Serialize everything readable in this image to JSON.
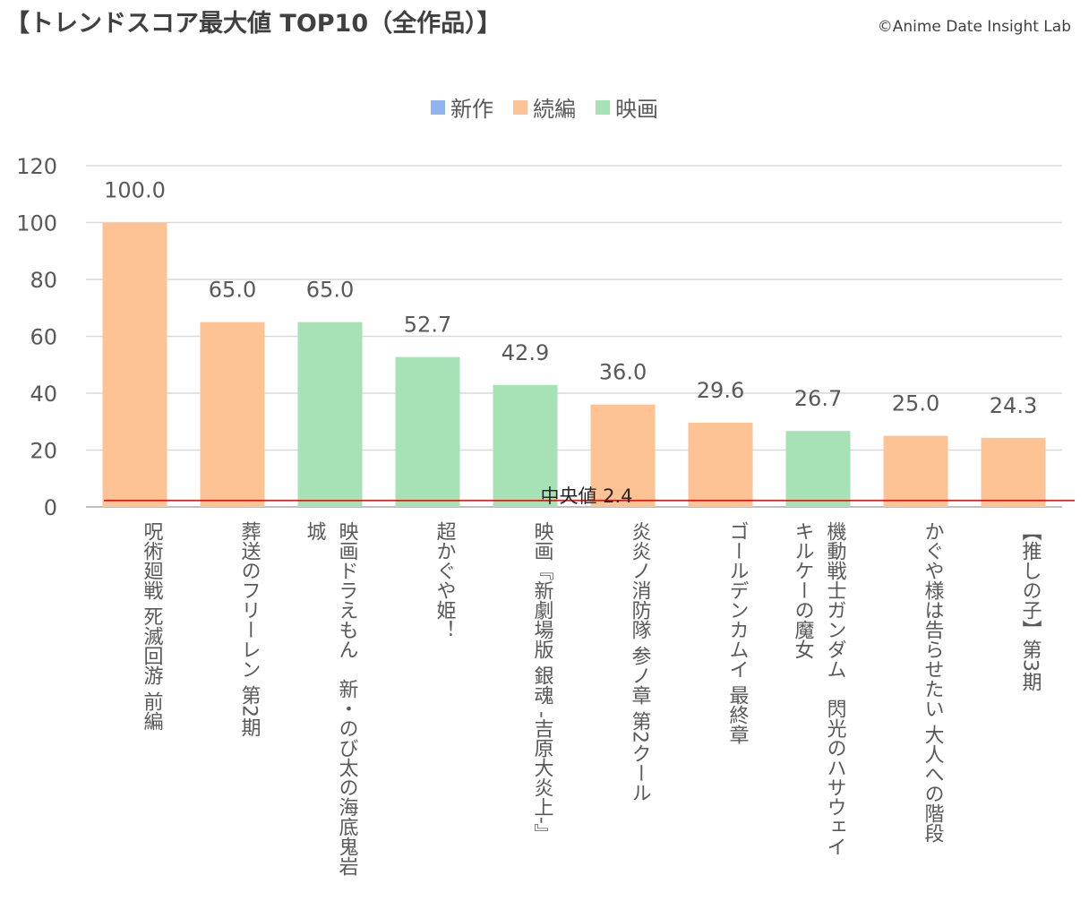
{
  "title": "【トレンドスコア最大値 TOP10（全作品）】",
  "credit": "©Anime Date Insight Lab",
  "legend": [
    {
      "label": "新作",
      "color": "#8fb4f0"
    },
    {
      "label": "続編",
      "color": "#fdc395"
    },
    {
      "label": "映画",
      "color": "#a6e2b5"
    }
  ],
  "chart_data": {
    "type": "bar",
    "title": "【トレンドスコア最大値 TOP10（全作品）】",
    "ylim": [
      0,
      120
    ],
    "yticks": [
      "0",
      "20",
      "40",
      "60",
      "80",
      "100",
      "120"
    ],
    "grid": true,
    "legend_position": "top-center",
    "categories": [
      "呪術廻戦 死滅回游 前編",
      "葬送のフリーレン 第2期",
      "映画ドラえもん　新・のび太の海底鬼岩城",
      "超かぐや姫！",
      "映画『新劇場版 銀魂 -吉原大炎上-』",
      "炎炎ノ消防隊 参ノ章 第2クール",
      "ゴールデンカムイ 最終章",
      "機動戦士ガンダム　閃光のハサウェイ　キルケーの魔女",
      "かぐや様は告らせたい 大人への階段",
      "【推しの子】第3期"
    ],
    "values": [
      100.0,
      65.0,
      65.0,
      52.7,
      42.9,
      36.0,
      29.6,
      26.7,
      25.0,
      24.3
    ],
    "data_labels": [
      "100.0",
      "65.0",
      "65.0",
      "52.7",
      "42.9",
      "36.0",
      "29.6",
      "26.7",
      "25.0",
      "24.3"
    ],
    "types": [
      "続編",
      "続編",
      "映画",
      "映画",
      "映画",
      "続編",
      "続編",
      "映画",
      "続編",
      "続編"
    ],
    "median": {
      "value": 2.4,
      "label": "中央値 2.4",
      "color": "#e00000"
    }
  }
}
